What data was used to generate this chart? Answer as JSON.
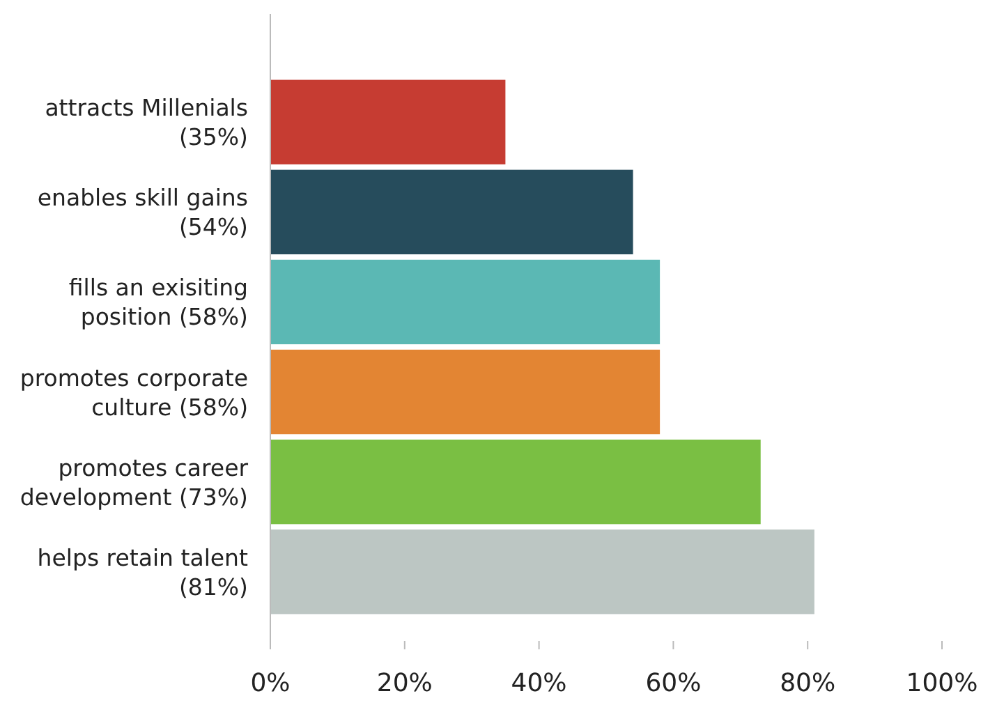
{
  "chart_data": {
    "type": "bar",
    "orientation": "horizontal",
    "categories": [
      "attracts Millenials (35%)",
      "enables skill gains (54%)",
      "fills an exisiting position (58%)",
      "promotes corporate culture (58%)",
      "promotes career development (73%)",
      "helps retain talent (81%)"
    ],
    "values": [
      35,
      54,
      58,
      58,
      73,
      81
    ],
    "colors": [
      "#c63c32",
      "#264c5c",
      "#5bb8b4",
      "#e38533",
      "#7abf43",
      "#bcc6c3"
    ],
    "xlim": [
      0,
      100
    ],
    "xticks": [
      {
        "value": 0,
        "label": "0%"
      },
      {
        "value": 20,
        "label": "20%"
      },
      {
        "value": 40,
        "label": "40%"
      },
      {
        "value": 60,
        "label": "60%"
      },
      {
        "value": 80,
        "label": "80%"
      },
      {
        "value": 100,
        "label": "100%"
      }
    ],
    "grid": false
  }
}
